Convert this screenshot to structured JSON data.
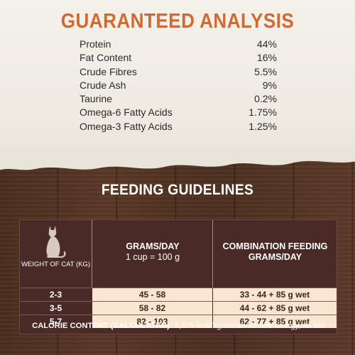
{
  "guaranteed_analysis": {
    "title": "GUARANTEED ANALYSIS",
    "rows": [
      {
        "name": "Protein",
        "value": "44%"
      },
      {
        "name": "Fat Content",
        "value": "16%"
      },
      {
        "name": "Crude Fibres",
        "value": "5.5%"
      },
      {
        "name": "Crude Ash",
        "value": "9%"
      },
      {
        "name": "Taurine",
        "value": "0.2%"
      },
      {
        "name": "Omega-6 Fatty Acids",
        "value": "1.75%"
      },
      {
        "name": "Omega-3 Fatty Acids",
        "value": "1.25%"
      }
    ]
  },
  "feeding_guidelines": {
    "title": "FEEDING GUIDELINES",
    "header": {
      "weight": "WEIGHT OF CAT (KG)",
      "grams_line1": "GRAMS/DAY",
      "grams_line2": "1 cup = 100 g",
      "combo_line1": "COMBINATION FEEDING",
      "combo_line2": "GRAMS/DAY"
    },
    "rows": [
      {
        "weight": "2-3",
        "grams": "45 - 58",
        "combo": "33 - 44 + 85 g wet"
      },
      {
        "weight": "3-5",
        "grams": "58 - 82",
        "combo": "44 - 62 + 85 g wet"
      },
      {
        "weight": "5-7",
        "grams": "82 - 103",
        "combo": "62 - 77 + 85 g wet"
      }
    ],
    "calorie_label": "CALORIE CONTENT (CALCULATED):",
    "calorie_value": "3,575 kcal/kg metabolizable energy, as fed"
  },
  "colors": {
    "title_orange": "#d06a32",
    "table_brown": "#4a2a27",
    "cell_cream": "#f9e6d0"
  },
  "icons": [
    "cat-silhouette-icon"
  ]
}
